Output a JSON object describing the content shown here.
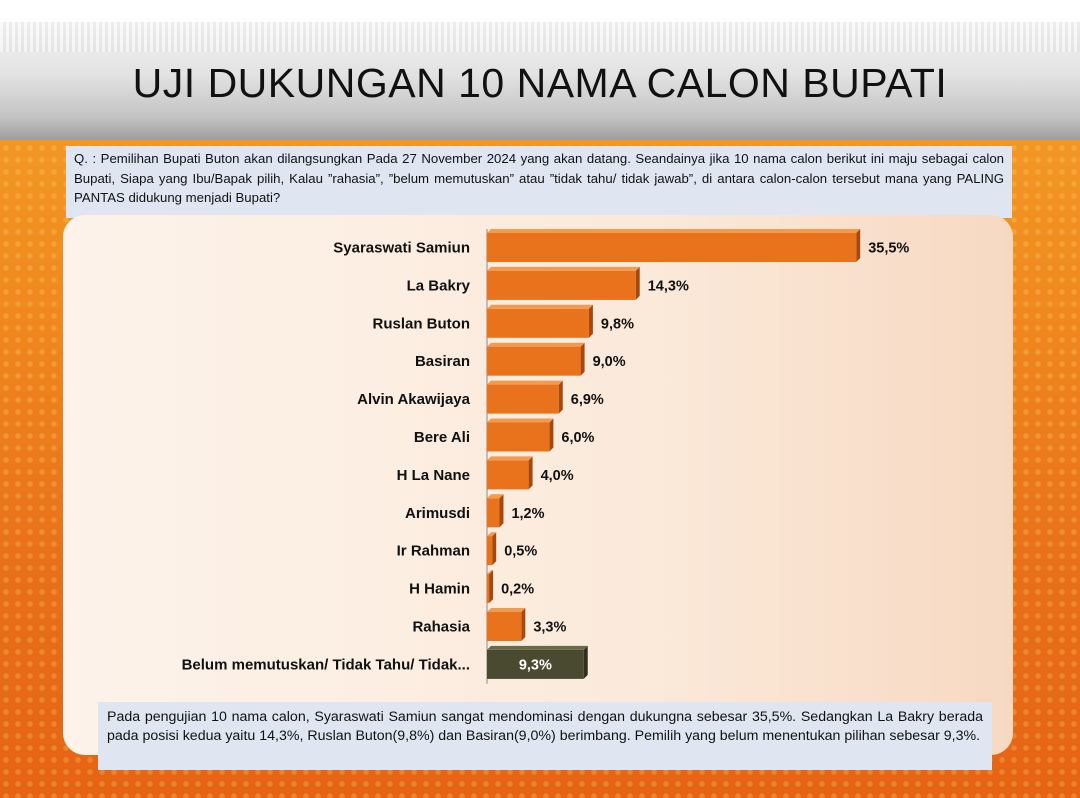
{
  "title": "UJI DUKUNGAN 10 NAMA CALON BUPATI",
  "question": "Q. : Pemilihan Bupati Buton akan dilangsungkan Pada 27 November 2024 yang akan datang. Seandainya jika 10 nama calon berikut ini maju sebagai calon Bupati, Siapa yang Ibu/Bapak pilih, Kalau ”rahasia”, ”belum memutuskan” atau ”tidak tahu/ tidak jawab”, di antara calon-calon tersebut mana yang PALING PANTAS didukung menjadi Bupati?",
  "summary": "Pada pengujian 10 nama calon, Syaraswati Samiun sangat mendominasi dengan dukungna sebesar 35,5%. Sedangkan La Bakry berada pada posisi kedua yaitu 14,3%, Ruslan Buton(9,8%) dan Basiran(9,0%) berimbang. Pemilih yang belum menentukan pilihan sebesar 9,3%.",
  "colors": {
    "bar": "#e8731c",
    "bar_undecided": "#4a4a30"
  },
  "chart_data": {
    "type": "bar",
    "orientation": "horizontal",
    "title": "",
    "xlabel": "",
    "ylabel": "",
    "xlim": [
      0,
      36
    ],
    "grid": false,
    "categories": [
      "Syaraswati Samiun",
      "La Bakry",
      "Ruslan Buton",
      "Basiran",
      "Alvin Akawijaya",
      "Bere Ali",
      "H La Nane",
      "Arimusdi",
      "Ir Rahman",
      "H Hamin",
      "Rahasia",
      "Belum memutuskan/ Tidak Tahu/ Tidak..."
    ],
    "values": [
      35.5,
      14.3,
      9.8,
      9.0,
      6.9,
      6.0,
      4.0,
      1.2,
      0.5,
      0.2,
      3.3,
      9.3
    ],
    "value_labels": [
      "35,5%",
      "14,3%",
      "9,8%",
      "9,0%",
      "6,9%",
      "6,0%",
      "4,0%",
      "1,2%",
      "0,5%",
      "0,2%",
      "3,3%",
      "9,3%"
    ],
    "highlight_index": 11
  }
}
